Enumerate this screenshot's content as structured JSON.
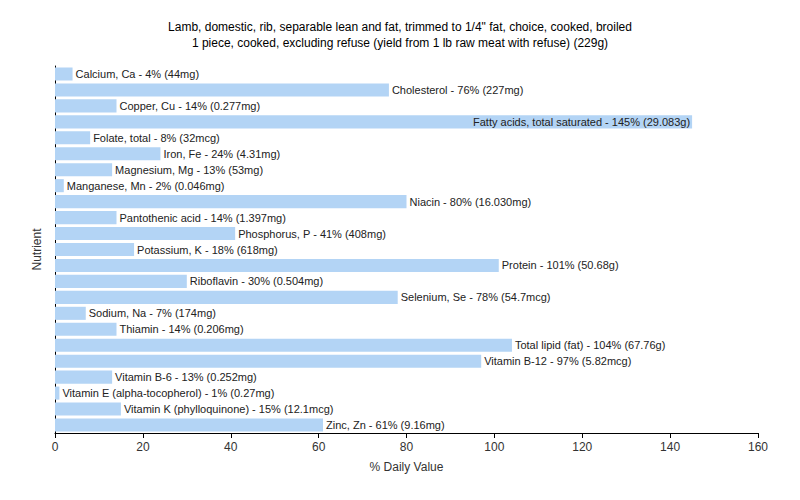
{
  "chart_data": {
    "type": "bar",
    "orientation": "horizontal",
    "title": "Lamb, domestic, rib, separable lean and fat, trimmed to 1/4\" fat, choice, cooked, broiled\n1 piece, cooked, excluding refuse (yield from 1 lb raw meat with refuse) (229g)",
    "x_label": "% Daily Value",
    "y_label": "Nutrient",
    "categories": [
      "Calcium, Ca",
      "Cholesterol",
      "Copper, Cu",
      "Fatty acids, total saturated",
      "Folate, total",
      "Iron, Fe",
      "Magnesium, Mg",
      "Manganese, Mn",
      "Niacin",
      "Pantothenic acid",
      "Phosphorus, P",
      "Potassium, K",
      "Protein",
      "Riboflavin",
      "Selenium, Se",
      "Sodium, Na",
      "Thiamin",
      "Total lipid (fat)",
      "Vitamin B-12",
      "Vitamin B-6",
      "Vitamin E (alpha-tocopherol)",
      "Vitamin K (phylloquinone)",
      "Zinc, Zn"
    ],
    "values": [
      4,
      76,
      14,
      145,
      8,
      24,
      13,
      2,
      80,
      14,
      41,
      18,
      101,
      30,
      78,
      7,
      14,
      104,
      97,
      13,
      1,
      15,
      61
    ],
    "value_labels": [
      "Calcium, Ca - 4% (44mg)",
      "Cholesterol - 76% (227mg)",
      "Copper, Cu - 14% (0.277mg)",
      "Fatty acids, total saturated - 145% (29.083g)",
      "Folate, total - 8% (32mcg)",
      "Iron, Fe - 24% (4.31mg)",
      "Magnesium, Mg - 13% (53mg)",
      "Manganese, Mn - 2% (0.046mg)",
      "Niacin - 80% (16.030mg)",
      "Pantothenic acid - 14% (1.397mg)",
      "Phosphorus, P - 41% (408mg)",
      "Potassium, K - 18% (618mg)",
      "Protein - 101% (50.68g)",
      "Riboflavin - 30% (0.504mg)",
      "Selenium, Se - 78% (54.7mcg)",
      "Sodium, Na - 7% (174mg)",
      "Thiamin - 14% (0.206mg)",
      "Total lipid (fat) - 104% (67.76g)",
      "Vitamin B-12 - 97% (5.82mcg)",
      "Vitamin B-6 - 13% (0.252mg)",
      "Vitamin E (alpha-tocopherol) - 1% (0.27mg)",
      "Vitamin K (phylloquinone) - 15% (12.1mcg)",
      "Zinc, Zn - 61% (9.16mg)"
    ],
    "color": "#b3d4f5",
    "xlim": [
      0,
      160
    ],
    "xticks": [
      0,
      20,
      40,
      60,
      80,
      100,
      120,
      140,
      160
    ],
    "grid": false,
    "data_labels": true,
    "tick_labels": "x"
  }
}
